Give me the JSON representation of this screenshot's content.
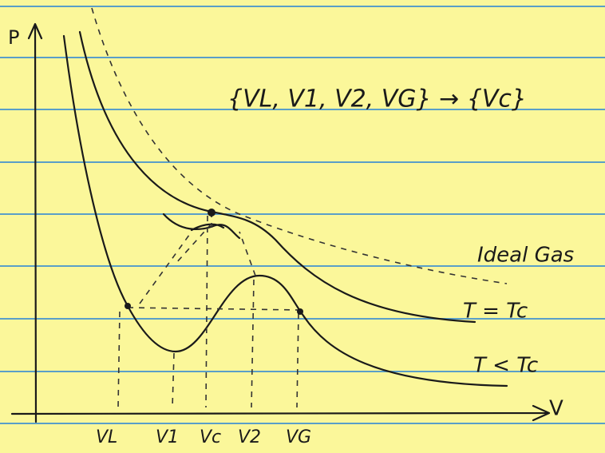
{
  "axes": {
    "y_label": "P",
    "x_label": "V"
  },
  "equation": "{VL, V1, V2, VG} → {Vc}",
  "curve_labels": [
    "Ideal Gas",
    "T = Tc",
    "T < Tc"
  ],
  "volume_labels": [
    "VL",
    "V1",
    "Vc",
    "V2",
    "VG"
  ]
}
